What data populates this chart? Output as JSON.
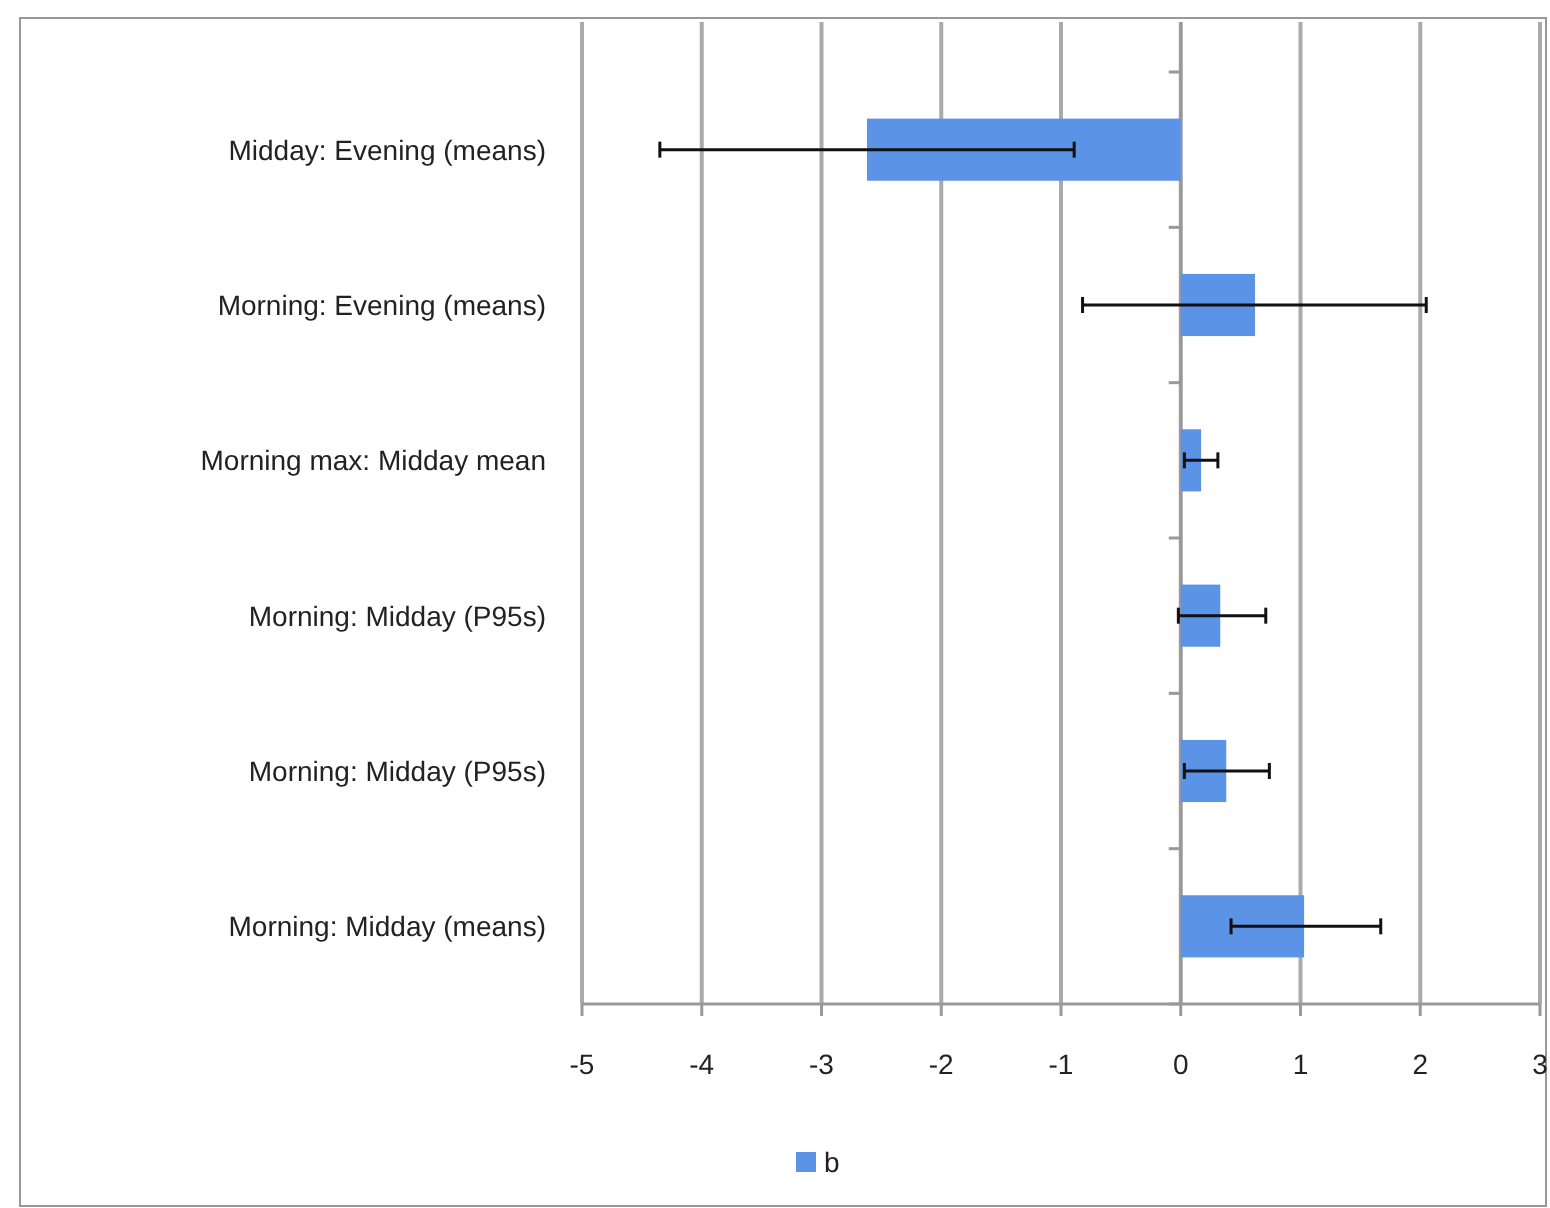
{
  "chart_data": {
    "type": "bar",
    "orientation": "horizontal",
    "categories": [
      "Midday: Evening (means)",
      "Morning: Evening (means)",
      "Morning max: Midday mean",
      "Morning: Midday (P95s)",
      "Morning: Midday (P95s)",
      "Morning: Midday (means)"
    ],
    "series": [
      {
        "name": "b",
        "color": "#5b93e6",
        "values": [
          -2.62,
          0.62,
          0.17,
          0.33,
          0.38,
          1.03
        ],
        "errors": [
          [
            -4.35,
            -0.89
          ],
          [
            -0.82,
            2.05
          ],
          [
            0.03,
            0.31
          ],
          [
            -0.02,
            0.71
          ],
          [
            0.03,
            0.74
          ],
          [
            0.42,
            1.67
          ]
        ]
      }
    ],
    "xlim": [
      -5,
      3
    ],
    "xticks": [
      -5,
      -4,
      -3,
      -2,
      -1,
      0,
      1,
      2,
      3
    ],
    "grid": "x",
    "legend": "bottom"
  }
}
